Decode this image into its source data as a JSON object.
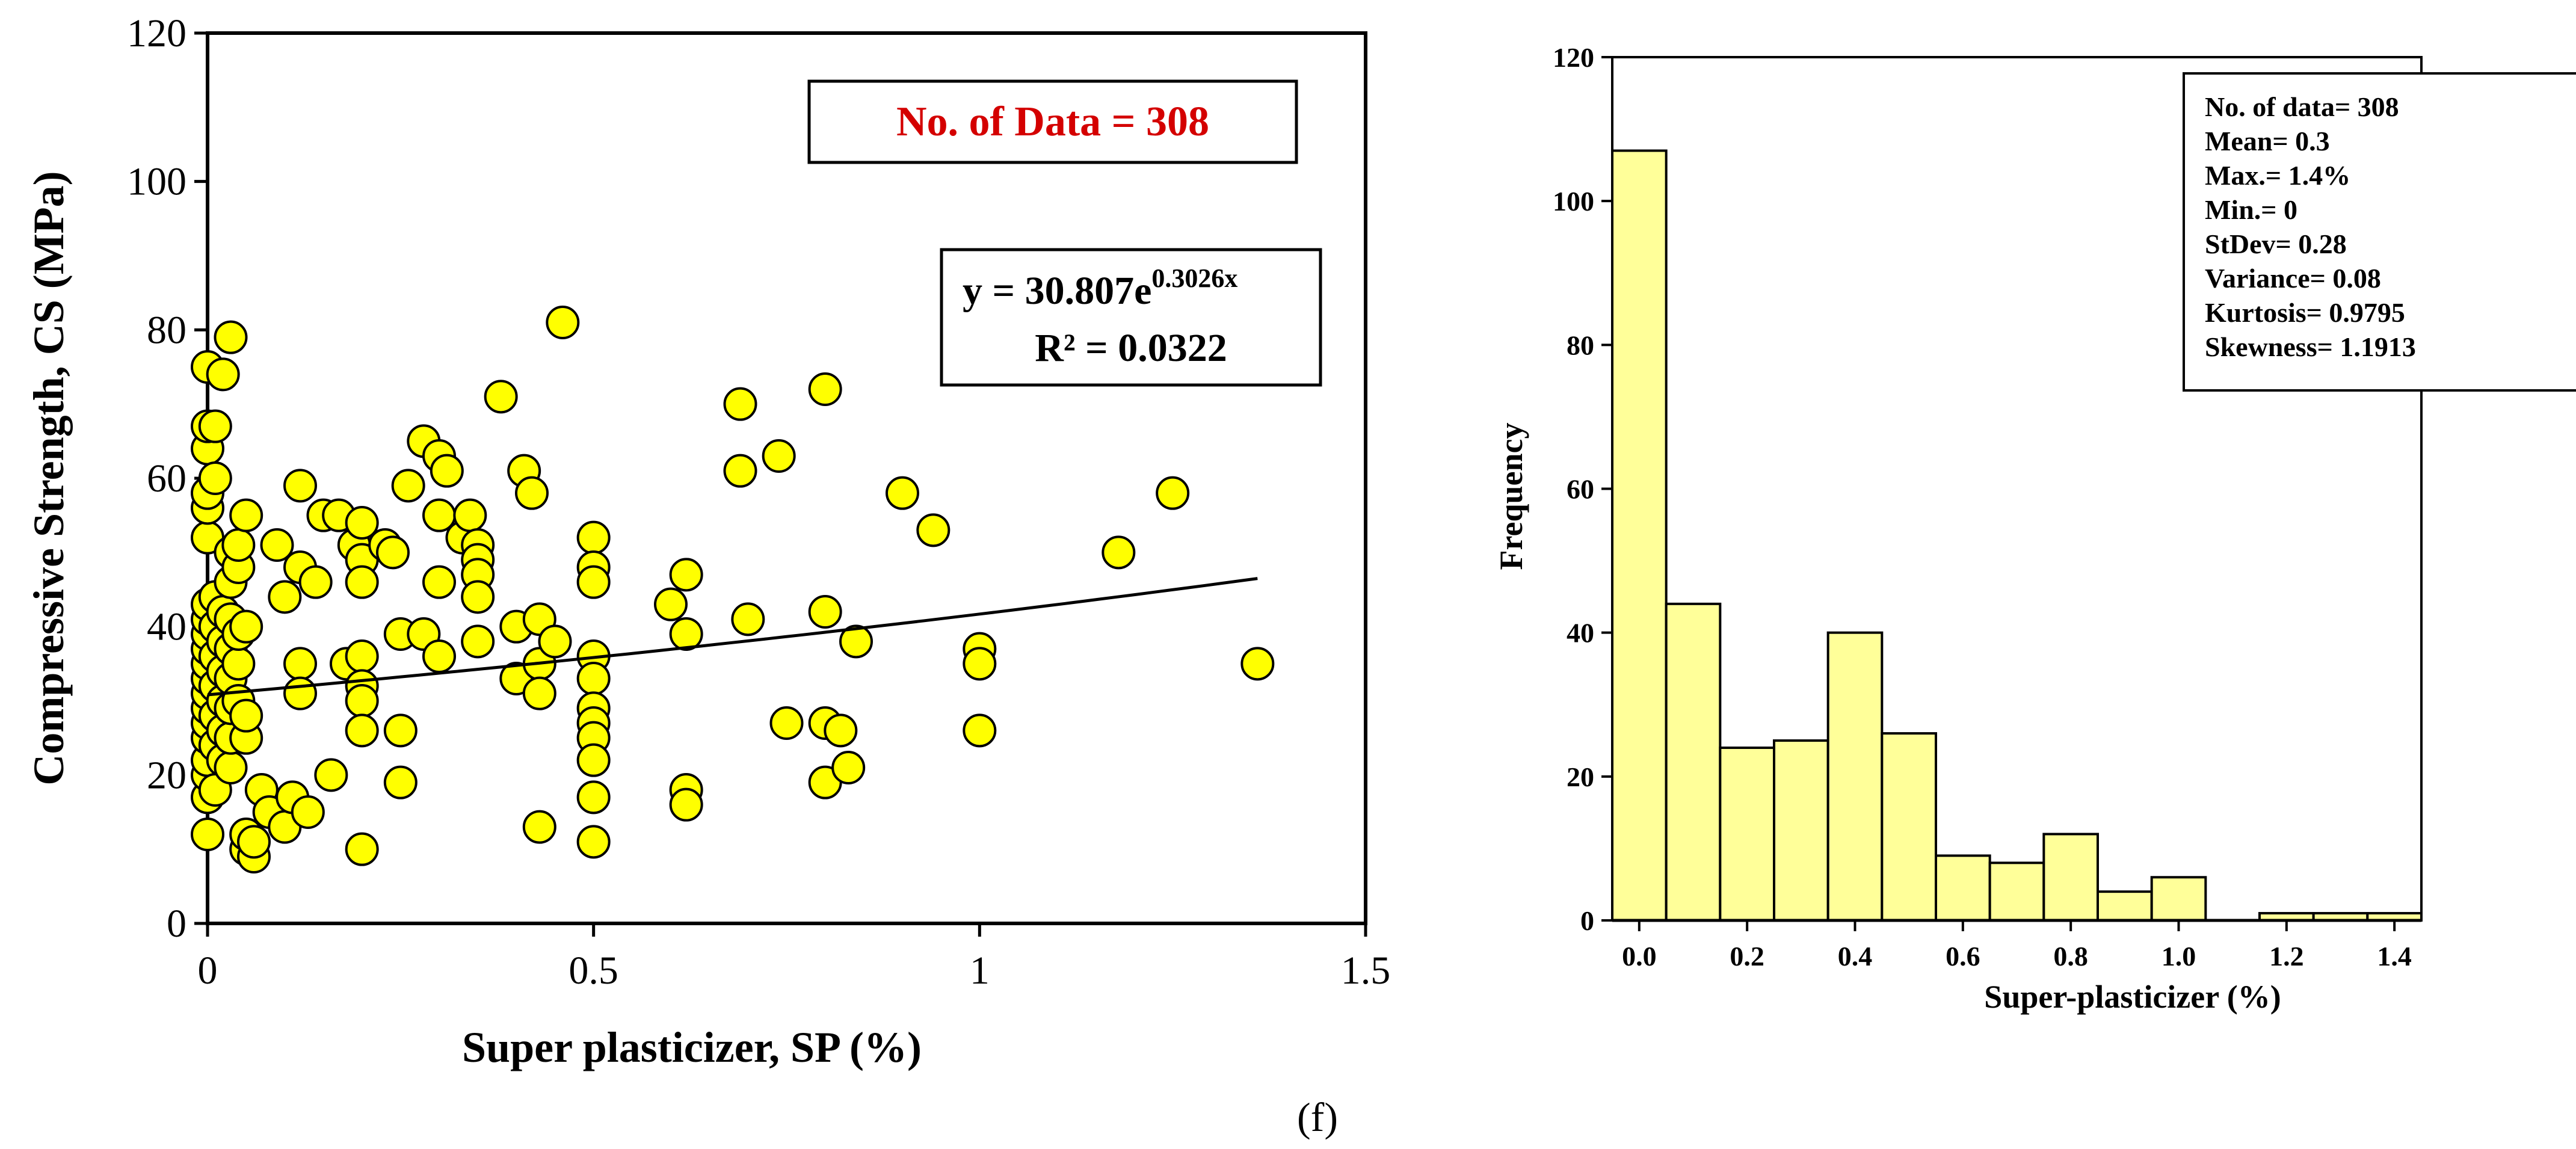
{
  "panel_label": "(f)",
  "scatter": {
    "data_label": "No. of Data = 308",
    "equation_main": "y = 30.807e",
    "equation_exp": "0.3026x",
    "r2": "R² = 0.0322",
    "colors": {
      "marker_fill": "#ffff00",
      "marker_stroke": "#000000",
      "data_label_text": "#d40000",
      "trend": "#000000"
    }
  },
  "histogram": {
    "stats": [
      "No. of data= 308",
      "Mean= 0.3",
      "Max.= 1.4%",
      "Min.= 0",
      "StDev= 0.28",
      "Variance= 0.08",
      "Kurtosis= 0.9795",
      "Skewness= 1.1913"
    ],
    "colors": {
      "bar_fill": "#ffff99",
      "bar_stroke": "#000000"
    }
  },
  "chart_data": [
    {
      "type": "scatter",
      "title": "",
      "xlabel": "Super plasticizer, SP (%)",
      "ylabel": "Compressive Strength, CS (MPa)",
      "xlim": [
        0,
        1.5
      ],
      "ylim": [
        0,
        120
      ],
      "xticks": [
        0,
        0.5,
        1,
        1.5
      ],
      "xtick_labels": [
        "0",
        "0.5",
        "1",
        "1.5"
      ],
      "yticks": [
        0,
        20,
        40,
        60,
        80,
        100,
        120
      ],
      "ytick_labels": [
        "0",
        "20",
        "40",
        "60",
        "80",
        "100",
        "120"
      ],
      "trendline": {
        "type": "exponential",
        "a": 30.807,
        "b": 0.3026,
        "x_range": [
          0,
          1.36
        ]
      },
      "points": [
        [
          0,
          12
        ],
        [
          0,
          17
        ],
        [
          0,
          20
        ],
        [
          0,
          22
        ],
        [
          0,
          25
        ],
        [
          0,
          27
        ],
        [
          0,
          29
        ],
        [
          0,
          31
        ],
        [
          0,
          33
        ],
        [
          0,
          35
        ],
        [
          0,
          37
        ],
        [
          0,
          39
        ],
        [
          0,
          41
        ],
        [
          0,
          43
        ],
        [
          0,
          52
        ],
        [
          0,
          56
        ],
        [
          0,
          58
        ],
        [
          0,
          64
        ],
        [
          0,
          67
        ],
        [
          0,
          75
        ],
        [
          0.01,
          18
        ],
        [
          0.01,
          24
        ],
        [
          0.01,
          28
        ],
        [
          0.01,
          32
        ],
        [
          0.01,
          36
        ],
        [
          0.01,
          40
        ],
        [
          0.01,
          44
        ],
        [
          0.01,
          60
        ],
        [
          0.01,
          67
        ],
        [
          0.02,
          22
        ],
        [
          0.02,
          26
        ],
        [
          0.02,
          30
        ],
        [
          0.02,
          34
        ],
        [
          0.02,
          38
        ],
        [
          0.02,
          42
        ],
        [
          0.02,
          74
        ],
        [
          0.03,
          79
        ],
        [
          0.03,
          21
        ],
        [
          0.03,
          25
        ],
        [
          0.03,
          29
        ],
        [
          0.03,
          33
        ],
        [
          0.03,
          37
        ],
        [
          0.03,
          41
        ],
        [
          0.03,
          46
        ],
        [
          0.03,
          50
        ],
        [
          0.04,
          48
        ],
        [
          0.04,
          51
        ],
        [
          0.04,
          30
        ],
        [
          0.04,
          35
        ],
        [
          0.04,
          39
        ],
        [
          0.05,
          10
        ],
        [
          0.05,
          12
        ],
        [
          0.05,
          25
        ],
        [
          0.05,
          28
        ],
        [
          0.05,
          40
        ],
        [
          0.05,
          55
        ],
        [
          0.06,
          9
        ],
        [
          0.06,
          11
        ],
        [
          0.07,
          18
        ],
        [
          0.08,
          15
        ],
        [
          0.09,
          51
        ],
        [
          0.1,
          44
        ],
        [
          0.1,
          13
        ],
        [
          0.11,
          17
        ],
        [
          0.12,
          59
        ],
        [
          0.12,
          48
        ],
        [
          0.12,
          35
        ],
        [
          0.12,
          31
        ],
        [
          0.13,
          15
        ],
        [
          0.14,
          46
        ],
        [
          0.15,
          55
        ],
        [
          0.16,
          20
        ],
        [
          0.17,
          55
        ],
        [
          0.18,
          35
        ],
        [
          0.19,
          51
        ],
        [
          0.2,
          54
        ],
        [
          0.2,
          49
        ],
        [
          0.2,
          46
        ],
        [
          0.2,
          36
        ],
        [
          0.2,
          32
        ],
        [
          0.2,
          30
        ],
        [
          0.2,
          26
        ],
        [
          0.2,
          10
        ],
        [
          0.23,
          51
        ],
        [
          0.24,
          50
        ],
        [
          0.25,
          39
        ],
        [
          0.25,
          26
        ],
        [
          0.25,
          19
        ],
        [
          0.26,
          59
        ],
        [
          0.28,
          65
        ],
        [
          0.28,
          39
        ],
        [
          0.3,
          63
        ],
        [
          0.3,
          55
        ],
        [
          0.3,
          46
        ],
        [
          0.3,
          36
        ],
        [
          0.31,
          61
        ],
        [
          0.33,
          52
        ],
        [
          0.34,
          55
        ],
        [
          0.35,
          51
        ],
        [
          0.35,
          49
        ],
        [
          0.35,
          47
        ],
        [
          0.35,
          44
        ],
        [
          0.35,
          38
        ],
        [
          0.38,
          71
        ],
        [
          0.4,
          40
        ],
        [
          0.4,
          33
        ],
        [
          0.41,
          61
        ],
        [
          0.42,
          58
        ],
        [
          0.43,
          41
        ],
        [
          0.43,
          35
        ],
        [
          0.43,
          31
        ],
        [
          0.43,
          13
        ],
        [
          0.45,
          38
        ],
        [
          0.46,
          81
        ],
        [
          0.5,
          52
        ],
        [
          0.5,
          48
        ],
        [
          0.5,
          46
        ],
        [
          0.5,
          36
        ],
        [
          0.5,
          33
        ],
        [
          0.5,
          29
        ],
        [
          0.5,
          27
        ],
        [
          0.5,
          25
        ],
        [
          0.5,
          22
        ],
        [
          0.5,
          17
        ],
        [
          0.5,
          11
        ],
        [
          0.6,
          43
        ],
        [
          0.62,
          47
        ],
        [
          0.62,
          39
        ],
        [
          0.62,
          18
        ],
        [
          0.62,
          16
        ],
        [
          0.69,
          70
        ],
        [
          0.69,
          61
        ],
        [
          0.7,
          41
        ],
        [
          0.74,
          63
        ],
        [
          0.75,
          27
        ],
        [
          0.8,
          72
        ],
        [
          0.8,
          42
        ],
        [
          0.8,
          27
        ],
        [
          0.8,
          19
        ],
        [
          0.82,
          26
        ],
        [
          0.83,
          21
        ],
        [
          0.84,
          38
        ],
        [
          0.9,
          58
        ],
        [
          0.94,
          53
        ],
        [
          1,
          37
        ],
        [
          1,
          35
        ],
        [
          1,
          26
        ],
        [
          1.18,
          50
        ],
        [
          1.25,
          58
        ],
        [
          1.36,
          35
        ]
      ]
    },
    {
      "type": "bar",
      "subtype": "histogram",
      "title": "",
      "xlabel": "Super-plasticizer (%)",
      "ylabel": "Frequency",
      "bin_width": 0.1,
      "bin_starts": [
        -0.05,
        0.05,
        0.15,
        0.25,
        0.35,
        0.45,
        0.55,
        0.65,
        0.75,
        0.85,
        0.95,
        1.05,
        1.15,
        1.25,
        1.35
      ],
      "values": [
        107,
        44,
        24,
        25,
        40,
        26,
        9,
        8,
        12,
        4,
        6,
        0,
        1,
        1,
        1
      ],
      "xlim": [
        -0.05,
        1.45
      ],
      "ylim": [
        0,
        120
      ],
      "xticks": [
        0,
        0.2,
        0.4,
        0.6,
        0.8,
        1.0,
        1.2,
        1.4
      ],
      "xtick_labels": [
        "0.0",
        "0.2",
        "0.4",
        "0.6",
        "0.8",
        "1.0",
        "1.2",
        "1.4"
      ],
      "yticks": [
        0,
        20,
        40,
        60,
        80,
        100,
        120
      ],
      "ytick_labels": [
        "0",
        "20",
        "40",
        "60",
        "80",
        "100",
        "120"
      ]
    }
  ]
}
